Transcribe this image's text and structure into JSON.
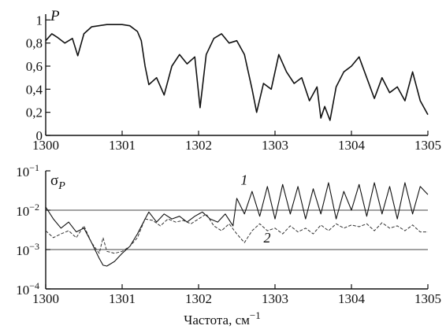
{
  "chart_data": [
    {
      "type": "line",
      "ylabel": "P",
      "xlim": [
        1300,
        1305
      ],
      "ylim": [
        0,
        1.05
      ],
      "x_ticks": [
        "1300",
        "1301",
        "1302",
        "1303",
        "1304",
        "1305"
      ],
      "y_ticks": [
        "0",
        "0,2",
        "0,4",
        "0,6",
        "0,8",
        "1"
      ],
      "y_tick_values": [
        0,
        0.2,
        0.4,
        0.6,
        0.8,
        1.0
      ],
      "grid": false,
      "series": [
        {
          "x": [
            1300.0,
            1300.08,
            1300.15,
            1300.25,
            1300.35,
            1300.42,
            1300.5,
            1300.6,
            1300.8,
            1301.0,
            1301.1,
            1301.2,
            1301.25,
            1301.3,
            1301.35,
            1301.45,
            1301.55,
            1301.65,
            1301.75,
            1301.85,
            1301.95,
            1302.02,
            1302.1,
            1302.2,
            1302.3,
            1302.4,
            1302.5,
            1302.6,
            1302.7,
            1302.76,
            1302.85,
            1302.95,
            1303.05,
            1303.15,
            1303.25,
            1303.35,
            1303.45,
            1303.55,
            1303.6,
            1303.65,
            1303.72,
            1303.8,
            1303.9,
            1304.0,
            1304.1,
            1304.2,
            1304.3,
            1304.4,
            1304.5,
            1304.6,
            1304.7,
            1304.8,
            1304.9,
            1305.0
          ],
          "y": [
            0.82,
            0.88,
            0.85,
            0.8,
            0.84,
            0.69,
            0.88,
            0.94,
            0.96,
            0.96,
            0.95,
            0.9,
            0.82,
            0.6,
            0.44,
            0.5,
            0.35,
            0.6,
            0.7,
            0.62,
            0.68,
            0.24,
            0.7,
            0.84,
            0.88,
            0.8,
            0.82,
            0.7,
            0.4,
            0.2,
            0.45,
            0.4,
            0.7,
            0.55,
            0.45,
            0.5,
            0.3,
            0.42,
            0.15,
            0.25,
            0.13,
            0.42,
            0.55,
            0.6,
            0.68,
            0.5,
            0.32,
            0.5,
            0.37,
            0.42,
            0.3,
            0.55,
            0.3,
            0.18
          ]
        }
      ]
    },
    {
      "type": "line",
      "ylabel": "σ",
      "ylabel_sub": "P",
      "xlabel": "Частота, см",
      "xlabel_sup": "−1",
      "xlim": [
        1300,
        1305
      ],
      "log_y": true,
      "ylim": [
        0.0001,
        0.1
      ],
      "x_ticks": [
        "1300",
        "1301",
        "1302",
        "1303",
        "1304",
        "1305"
      ],
      "y_ticks": [
        {
          "base": "10",
          "exp": "−1",
          "value": 0.1
        },
        {
          "base": "10",
          "exp": "−2",
          "value": 0.01
        },
        {
          "base": "10",
          "exp": "−3",
          "value": 0.001
        },
        {
          "base": "10",
          "exp": "−4",
          "value": 0.0001
        }
      ],
      "reference_lines": [
        0.01,
        0.001
      ],
      "grid": false,
      "series": [
        {
          "name": "1",
          "x": [
            1300.0,
            1300.1,
            1300.2,
            1300.3,
            1300.4,
            1300.5,
            1300.6,
            1300.7,
            1300.75,
            1300.8,
            1300.9,
            1301.0,
            1301.1,
            1301.2,
            1301.3,
            1301.35,
            1301.45,
            1301.55,
            1301.65,
            1301.75,
            1301.85,
            1301.95,
            1302.05,
            1302.15,
            1302.25,
            1302.35,
            1302.45,
            1302.5,
            1302.6,
            1302.7,
            1302.8,
            1302.9,
            1303.0,
            1303.1,
            1303.2,
            1303.3,
            1303.4,
            1303.5,
            1303.6,
            1303.7,
            1303.8,
            1303.9,
            1304.0,
            1304.1,
            1304.2,
            1304.3,
            1304.4,
            1304.5,
            1304.6,
            1304.7,
            1304.8,
            1304.9,
            1305.0
          ],
          "y": [
            0.012,
            0.006,
            0.0035,
            0.005,
            0.0028,
            0.0035,
            0.0015,
            0.0006,
            0.0004,
            0.00038,
            0.0005,
            0.0008,
            0.0012,
            0.0025,
            0.006,
            0.009,
            0.005,
            0.008,
            0.006,
            0.007,
            0.005,
            0.007,
            0.009,
            0.006,
            0.005,
            0.008,
            0.004,
            0.02,
            0.008,
            0.03,
            0.007,
            0.04,
            0.006,
            0.045,
            0.008,
            0.04,
            0.006,
            0.035,
            0.008,
            0.05,
            0.006,
            0.03,
            0.01,
            0.045,
            0.007,
            0.05,
            0.008,
            0.04,
            0.006,
            0.05,
            0.008,
            0.04,
            0.025
          ]
        },
        {
          "name": "2",
          "x": [
            1300.0,
            1300.1,
            1300.2,
            1300.3,
            1300.4,
            1300.5,
            1300.6,
            1300.7,
            1300.75,
            1300.8,
            1300.9,
            1301.0,
            1301.1,
            1301.2,
            1301.3,
            1301.4,
            1301.5,
            1301.6,
            1301.7,
            1301.8,
            1301.9,
            1302.0,
            1302.1,
            1302.2,
            1302.3,
            1302.4,
            1302.5,
            1302.6,
            1302.7,
            1302.8,
            1302.9,
            1303.0,
            1303.1,
            1303.2,
            1303.3,
            1303.4,
            1303.5,
            1303.6,
            1303.7,
            1303.8,
            1303.9,
            1304.0,
            1304.1,
            1304.2,
            1304.3,
            1304.4,
            1304.5,
            1304.6,
            1304.7,
            1304.8,
            1304.9,
            1305.0
          ],
          "y": [
            0.003,
            0.002,
            0.0025,
            0.003,
            0.002,
            0.004,
            0.0015,
            0.0008,
            0.002,
            0.0009,
            0.0008,
            0.0009,
            0.0012,
            0.002,
            0.006,
            0.0055,
            0.004,
            0.006,
            0.005,
            0.0055,
            0.0045,
            0.006,
            0.008,
            0.004,
            0.003,
            0.0045,
            0.0025,
            0.0015,
            0.003,
            0.0045,
            0.003,
            0.0035,
            0.0025,
            0.004,
            0.0028,
            0.0035,
            0.0025,
            0.0042,
            0.003,
            0.0045,
            0.0035,
            0.0042,
            0.0038,
            0.0045,
            0.003,
            0.0048,
            0.0035,
            0.004,
            0.003,
            0.0042,
            0.0028,
            0.0028
          ]
        }
      ]
    }
  ]
}
